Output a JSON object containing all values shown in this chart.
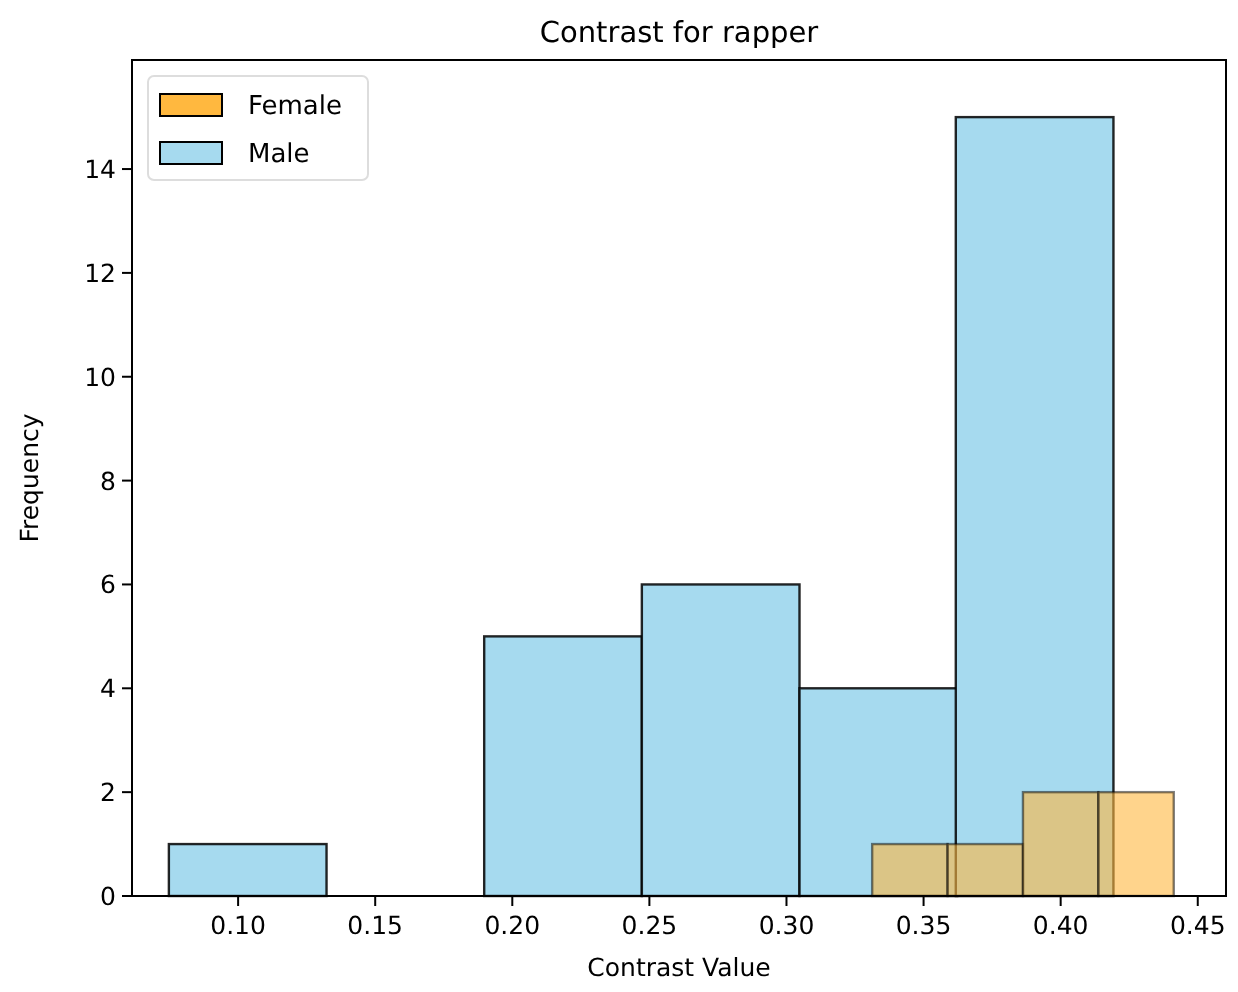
{
  "chart_data": {
    "type": "bar",
    "title": "Contrast for rapper",
    "xlabel": "Contrast Value",
    "ylabel": "Frequency",
    "series": [
      {
        "name": "Female",
        "color": "#ffb83f",
        "x": [
          0.345,
          0.3725,
          0.4,
          0.4275
        ],
        "values": [
          1,
          1,
          2,
          2
        ]
      },
      {
        "name": "Male",
        "color": "#a6daef",
        "x": [
          0.1035,
          0.161,
          0.2185,
          0.276,
          0.3335,
          0.3905
        ],
        "values": [
          1,
          0,
          5,
          6,
          4,
          15
        ]
      }
    ],
    "xlim": [
      0.0613,
      0.4603
    ],
    "xticks": [
      {
        "value": 0.1,
        "label": "0.10"
      },
      {
        "value": 0.15,
        "label": "0.15"
      },
      {
        "value": 0.2,
        "label": "0.20"
      },
      {
        "value": 0.25,
        "label": "0.25"
      },
      {
        "value": 0.3,
        "label": "0.30"
      },
      {
        "value": 0.35,
        "label": "0.35"
      },
      {
        "value": 0.4,
        "label": "0.40"
      },
      {
        "value": 0.45,
        "label": "0.45"
      }
    ],
    "ylim": [
      0,
      16.1
    ],
    "yticks": [
      0,
      2,
      4,
      6,
      8,
      10,
      12,
      14
    ],
    "legend": "top left"
  }
}
